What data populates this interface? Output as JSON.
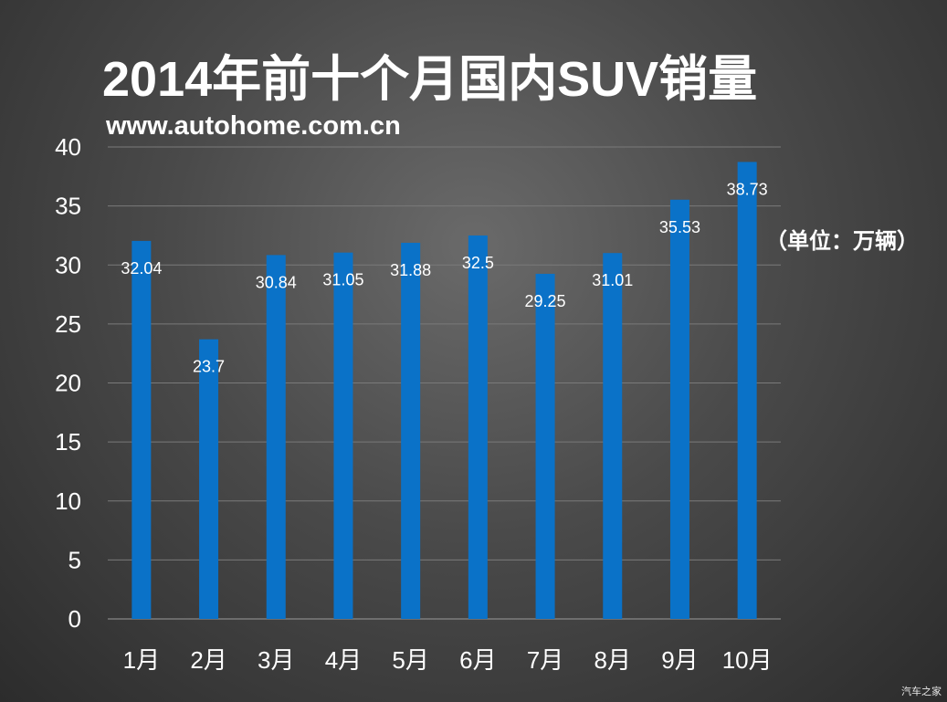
{
  "header": {
    "title": "2014年前十个月国内SUV销量",
    "subtitle": "www.autohome.com.cn"
  },
  "unit_label": "（单位：万辆）",
  "watermark": "汽车之家",
  "colors": {
    "bar": "#0a72c8",
    "grid": "#7a7a7a",
    "text": "#ffffff"
  },
  "chart_data": {
    "type": "bar",
    "title": "2014年前十个月国内SUV销量",
    "xlabel": "",
    "ylabel": "",
    "unit": "（单位：万辆）",
    "categories": [
      "1月",
      "2月",
      "3月",
      "4月",
      "5月",
      "6月",
      "7月",
      "8月",
      "9月",
      "10月"
    ],
    "values": [
      32.04,
      23.7,
      30.84,
      31.05,
      31.88,
      32.5,
      29.25,
      31.01,
      35.53,
      38.73
    ],
    "data_labels": [
      "32.04",
      "23.7",
      "30.84",
      "31.05",
      "31.88",
      "32.5",
      "29.25",
      "31.01",
      "35.53",
      "38.73"
    ],
    "ylim": [
      0,
      40
    ],
    "yticks": [
      "0",
      "5",
      "10",
      "15",
      "20",
      "25",
      "30",
      "35",
      "40"
    ],
    "grid": true,
    "legend": "none"
  }
}
